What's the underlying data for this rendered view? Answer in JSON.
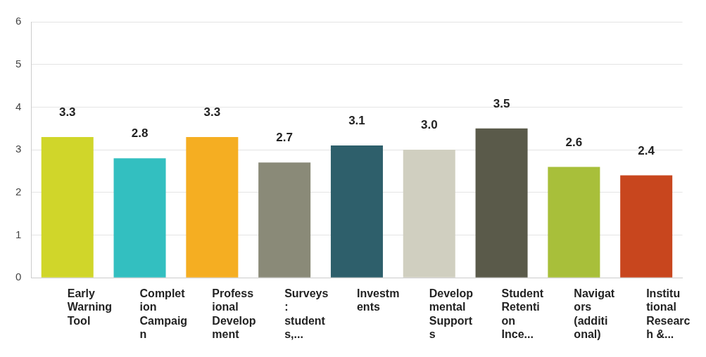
{
  "chart_data": {
    "type": "bar",
    "categories": [
      "Early Warning Tool",
      "Completion Campaign",
      "Professional Development",
      "Surveys: students,...",
      "Investments",
      "Developmental Supports",
      "Student Retention Ince...",
      "Navigators (additional)",
      "Institutional Research &..."
    ],
    "values": [
      3.3,
      2.8,
      3.3,
      2.7,
      3.1,
      3.0,
      3.5,
      2.6,
      2.4
    ],
    "colors": [
      "#d0d62a",
      "#33bfc0",
      "#f5ae22",
      "#8a8a78",
      "#2e5f6b",
      "#d0cfc0",
      "#5a5a4a",
      "#a8bf3a",
      "#c8461e"
    ],
    "value_labels": [
      "3.3",
      "2.8",
      "3.3",
      "2.7",
      "3.1",
      "3.0",
      "3.5",
      "2.6",
      "2.4"
    ],
    "ylim": [
      0,
      6
    ],
    "yticks": [
      0,
      1,
      2,
      3,
      4,
      5,
      6
    ],
    "grid": "y",
    "legend": false
  }
}
